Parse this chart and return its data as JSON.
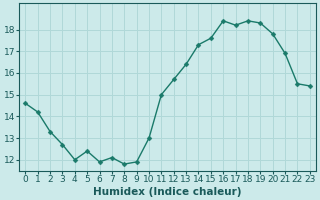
{
  "x": [
    0,
    1,
    2,
    3,
    4,
    5,
    6,
    7,
    8,
    9,
    10,
    11,
    12,
    13,
    14,
    15,
    16,
    17,
    18,
    19,
    20,
    21,
    22,
    23
  ],
  "y": [
    14.6,
    14.2,
    13.3,
    12.7,
    12.0,
    12.4,
    11.9,
    12.1,
    11.8,
    11.9,
    13.0,
    15.0,
    15.7,
    16.4,
    17.3,
    17.6,
    18.4,
    18.2,
    18.4,
    18.3,
    17.8,
    16.9,
    15.5,
    15.4
  ],
  "line_color": "#1a7a6a",
  "marker": "D",
  "marker_size": 2.5,
  "bg_color": "#cceaea",
  "grid_color": "#b0d8d8",
  "xlabel": "Humidex (Indice chaleur)",
  "ylim": [
    11.5,
    19.2
  ],
  "xlim": [
    -0.5,
    23.5
  ],
  "yticks": [
    12,
    13,
    14,
    15,
    16,
    17,
    18
  ],
  "xticks": [
    0,
    1,
    2,
    3,
    4,
    5,
    6,
    7,
    8,
    9,
    10,
    11,
    12,
    13,
    14,
    15,
    16,
    17,
    18,
    19,
    20,
    21,
    22,
    23
  ],
  "tick_label_color": "#1a5a5a",
  "tick_label_fontsize": 6.5,
  "xlabel_fontsize": 7.5,
  "xlabel_color": "#1a5a5a",
  "linewidth": 1.0,
  "spine_color": "#1a5a5a"
}
